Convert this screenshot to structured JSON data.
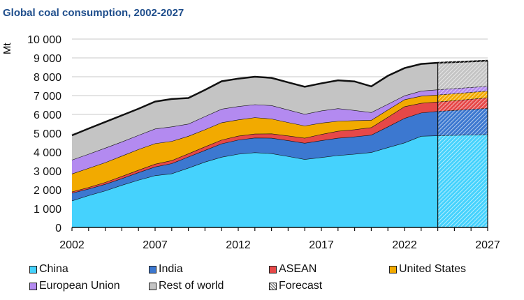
{
  "chart_data": {
    "type": "area",
    "title": "Global coal consumption, 2002-2027",
    "ylabel": "Mt",
    "xlabel": "",
    "xlim": [
      2002,
      2027
    ],
    "ylim": [
      0,
      10000
    ],
    "x_ticks": [
      2002,
      2007,
      2012,
      2017,
      2022,
      2027
    ],
    "y_ticks": [
      "0",
      "1 000",
      "2 000",
      "3 000",
      "4 000",
      "5 000",
      "6 000",
      "7 000",
      "8 000",
      "9 000",
      "10 000"
    ],
    "y_tick_values": [
      0,
      1000,
      2000,
      3000,
      4000,
      5000,
      6000,
      7000,
      8000,
      9000,
      10000
    ],
    "grid": true,
    "stacked": true,
    "forecast_start": 2024,
    "x": [
      2002,
      2003,
      2004,
      2005,
      2006,
      2007,
      2008,
      2009,
      2010,
      2011,
      2012,
      2013,
      2014,
      2015,
      2016,
      2017,
      2018,
      2019,
      2020,
      2021,
      2022,
      2023,
      2024,
      2027
    ],
    "series": [
      {
        "name": "China",
        "color": "#45d2fd",
        "values": [
          1420,
          1700,
          1950,
          2250,
          2520,
          2760,
          2860,
          3160,
          3480,
          3740,
          3900,
          3980,
          3930,
          3780,
          3620,
          3720,
          3830,
          3900,
          3990,
          4250,
          4500,
          4850,
          4880,
          4940
        ]
      },
      {
        "name": "India",
        "color": "#3c78d0",
        "values": [
          410,
          350,
          350,
          350,
          400,
          460,
          540,
          590,
          620,
          710,
          750,
          780,
          820,
          840,
          860,
          900,
          920,
          920,
          920,
          1100,
          1300,
          1240,
          1290,
          1390
        ]
      },
      {
        "name": "ASEAN",
        "color": "#e64848",
        "values": [
          70,
          80,
          100,
          120,
          130,
          150,
          160,
          170,
          190,
          200,
          210,
          210,
          230,
          250,
          270,
          330,
          370,
          380,
          400,
          510,
          620,
          510,
          500,
          560
        ]
      },
      {
        "name": "United States",
        "color": "#f2aa00",
        "values": [
          950,
          1020,
          1050,
          1080,
          1100,
          1090,
          1020,
          930,
          910,
          920,
          860,
          870,
          790,
          710,
          650,
          600,
          530,
          480,
          390,
          390,
          370,
          380,
          370,
          360
        ]
      },
      {
        "name": "European Union",
        "color": "#b38af0",
        "values": [
          740,
          750,
          770,
          750,
          750,
          780,
          770,
          650,
          700,
          720,
          710,
          690,
          710,
          670,
          620,
          650,
          670,
          540,
          410,
          300,
          210,
          270,
          280,
          250
        ]
      },
      {
        "name": "Rest of world",
        "color": "#c4c4c4",
        "values": [
          1300,
          1350,
          1380,
          1400,
          1400,
          1440,
          1470,
          1370,
          1400,
          1470,
          1470,
          1470,
          1460,
          1450,
          1450,
          1450,
          1490,
          1530,
          1380,
          1500,
          1460,
          1430,
          1420,
          1350
        ]
      }
    ],
    "legend": {
      "placement": "bottom",
      "forecast_label": "Forecast"
    }
  }
}
